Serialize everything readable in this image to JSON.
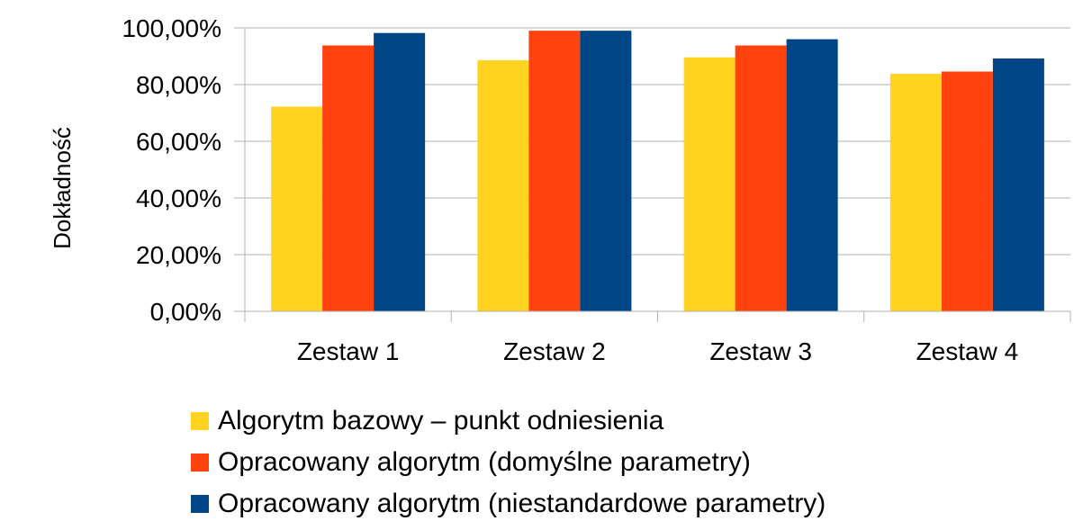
{
  "chart_data": {
    "type": "bar",
    "title": "",
    "xlabel": "",
    "ylabel": "Dokładność",
    "categories": [
      "Zestaw 1",
      "Zestaw 2",
      "Zestaw 3",
      "Zestaw 4"
    ],
    "series": [
      {
        "name": "Algorytm bazowy – punkt odniesienia",
        "color": "#ffd320",
        "values": [
          72.2,
          88.6,
          89.6,
          83.8
        ]
      },
      {
        "name": "Opracowany algorytm (domyślne parametry)",
        "color": "#ff420e",
        "values": [
          93.8,
          99.0,
          93.8,
          84.6
        ]
      },
      {
        "name": "Opracowany algorytm (niestandardowe parametry)",
        "color": "#004586",
        "values": [
          98.2,
          99.0,
          96.0,
          89.2
        ]
      }
    ],
    "yticks": [
      "0,00%",
      "20,00%",
      "40,00%",
      "60,00%",
      "80,00%",
      "100,00%"
    ],
    "ytick_values": [
      0,
      20,
      40,
      60,
      80,
      100
    ],
    "ylim": [
      0,
      100
    ],
    "grid": true,
    "legend_position": "bottom",
    "colors": {
      "gridline": "#b3b3b3",
      "axis": "#b3b3b3"
    }
  }
}
